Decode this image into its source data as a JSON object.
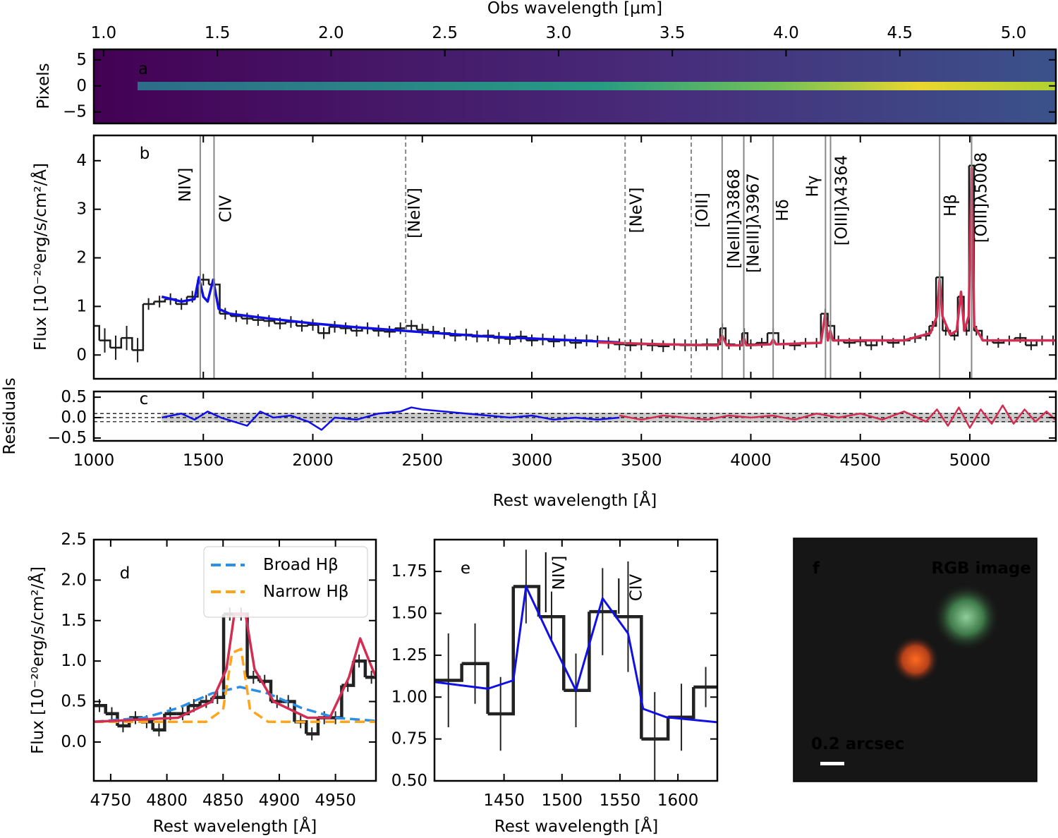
{
  "chart_data": [
    {
      "type": "heatmap",
      "letter": "a",
      "x2label": "Obs wavelength [μm]",
      "x2lim": [
        0.957,
        5.186
      ],
      "x2ticks": [
        {
          "value": 1,
          "label": "1.0"
        },
        1.5,
        {
          "value": 2,
          "label": "2.0"
        },
        2.5,
        {
          "value": 3,
          "label": "3.0"
        },
        3.5,
        {
          "value": 4,
          "label": "4.0"
        },
        4.5,
        {
          "value": 5,
          "label": "5.0"
        }
      ],
      "ylabel": "Pixels",
      "ylim": [
        -7.2,
        7
      ],
      "yticks": [
        5,
        0,
        {
          "value": -5,
          "label": "−5"
        }
      ]
    },
    {
      "type": "spectrum",
      "letter": "b",
      "ylabel": "Flux [10⁻²⁰erg/s/cm²/Å]",
      "xlim": [
        1000,
        5393
      ],
      "xticks": [
        1000,
        1500,
        2000,
        2500,
        3000,
        3500,
        4000,
        4500,
        5000
      ],
      "xtick_labels": false,
      "ylim": [
        -0.49,
        4.52
      ],
      "yticks": [
        0,
        1,
        2,
        3,
        4
      ],
      "series": [
        {
          "color": "#1a1a1a",
          "step": true,
          "x": [
            1000,
            1050,
            1100,
            1150,
            1200,
            1250,
            1300,
            1350,
            1400,
            1450,
            1500,
            1550,
            1600,
            1650,
            1700,
            1750,
            1800,
            1850,
            1900,
            1950,
            2000,
            2050,
            2100,
            2150,
            2200,
            2250,
            2300,
            2350,
            2400,
            2450,
            2500,
            2550,
            2600,
            2650,
            2700,
            2750,
            2800,
            2850,
            2900,
            2950,
            3000,
            3050,
            3100,
            3150,
            3200,
            3250,
            3300,
            3350,
            3400,
            3450,
            3500,
            3550,
            3600,
            3650,
            3700,
            3750,
            3800,
            3850,
            3870,
            3900,
            3950,
            3970,
            4000,
            4050,
            4102,
            4150,
            4200,
            4250,
            4300,
            4340,
            4363,
            4400,
            4450,
            4500,
            4550,
            4600,
            4650,
            4700,
            4750,
            4800,
            4830,
            4862,
            4890,
            4930,
            4960,
            4985,
            5008,
            5030,
            5080,
            5130,
            5180,
            5230,
            5280,
            5330,
            5380
          ],
          "values": [
            0.6,
            0.3,
            0.15,
            0.35,
            0.1,
            1.05,
            1.1,
            1.15,
            1.05,
            1.2,
            1.55,
            1.45,
            0.85,
            0.8,
            0.75,
            0.72,
            0.7,
            0.65,
            0.68,
            0.6,
            0.62,
            0.45,
            0.58,
            0.55,
            0.5,
            0.55,
            0.5,
            0.48,
            0.55,
            0.6,
            0.52,
            0.48,
            0.45,
            0.4,
            0.42,
            0.38,
            0.4,
            0.35,
            0.33,
            0.38,
            0.3,
            0.32,
            0.28,
            0.3,
            0.25,
            0.3,
            0.28,
            0.25,
            0.22,
            0.2,
            0.22,
            0.2,
            0.18,
            0.22,
            0.2,
            0.2,
            0.22,
            0.22,
            0.55,
            0.22,
            0.2,
            0.45,
            0.22,
            0.25,
            0.45,
            0.22,
            0.2,
            0.25,
            0.25,
            0.85,
            0.6,
            0.3,
            0.25,
            0.28,
            0.2,
            0.3,
            0.25,
            0.3,
            0.35,
            0.4,
            0.6,
            1.6,
            0.5,
            0.4,
            1.2,
            0.5,
            3.9,
            0.5,
            0.3,
            0.25,
            0.3,
            0.35,
            0.2,
            0.3,
            0.3
          ],
          "errors": [
            0.25,
            0.25,
            0.25,
            0.25,
            0.25,
            0.12,
            0.12,
            0.12,
            0.12,
            0.12,
            0.12,
            0.12,
            0.12,
            0.12,
            0.12,
            0.12,
            0.12,
            0.12,
            0.12,
            0.12,
            0.12,
            0.12,
            0.12,
            0.12,
            0.12,
            0.12,
            0.12,
            0.12,
            0.12,
            0.12,
            0.12,
            0.12,
            0.12,
            0.12,
            0.12,
            0.12,
            0.12,
            0.12,
            0.12,
            0.12,
            0.12,
            0.12,
            0.12,
            0.12,
            0.12,
            0.12,
            0.12,
            0.12,
            0.12,
            0.12,
            0.12,
            0.12,
            0.12,
            0.12,
            0.12,
            0.12,
            0.12,
            0.12,
            0.1,
            0.1,
            0.1,
            0.1,
            0.1,
            0.1,
            0.1,
            0.1,
            0.1,
            0.1,
            0.1,
            0.1,
            0.1,
            0.1,
            0.1,
            0.1,
            0.1,
            0.1,
            0.1,
            0.1,
            0.1,
            0.1,
            0.1,
            0.1,
            0.1,
            0.1,
            0.1,
            0.1,
            0.1,
            0.1,
            0.1,
            0.1,
            0.1,
            0.1,
            0.1,
            0.1,
            0.1
          ]
        },
        {
          "color": "#1010e6",
          "x": [
            1310,
            1400,
            1460,
            1480,
            1500,
            1520,
            1545,
            1570,
            1620,
            1800,
            2000,
            2200,
            2500,
            2800,
            3100,
            3400
          ],
          "values": [
            1.2,
            1.1,
            1.15,
            1.6,
            1.2,
            1.1,
            1.55,
            0.95,
            0.85,
            0.75,
            0.65,
            0.57,
            0.47,
            0.38,
            0.32,
            0.26
          ]
        },
        {
          "color": "#d22d52",
          "x": [
            3300,
            3600,
            3850,
            3869,
            3890,
            3960,
            3968,
            3980,
            4090,
            4102,
            4115,
            4320,
            4340,
            4352,
            4363,
            4375,
            4700,
            4820,
            4850,
            4862,
            4875,
            4910,
            4940,
            4960,
            4975,
            4995,
            5008,
            5020,
            5060,
            5393
          ],
          "values": [
            0.26,
            0.22,
            0.2,
            0.4,
            0.2,
            0.2,
            0.35,
            0.2,
            0.22,
            0.32,
            0.22,
            0.25,
            0.85,
            0.3,
            0.5,
            0.3,
            0.3,
            0.45,
            0.8,
            1.55,
            0.8,
            0.42,
            0.5,
            1.3,
            0.5,
            0.8,
            3.85,
            0.6,
            0.3,
            0.3
          ]
        }
      ],
      "lines": [
        {
          "x": 1486,
          "label": "NIV]",
          "style": "solid"
        },
        {
          "x": 1549,
          "label": "CIV",
          "style": "solid"
        },
        {
          "x": 2424,
          "label": "[NeIV]",
          "style": "dashed"
        },
        {
          "x": 3426,
          "label": "[NeV]",
          "style": "dashed"
        },
        {
          "x": 3728,
          "label": "[OII]",
          "style": "dashed"
        },
        {
          "x": 3869,
          "label": "[NeIII]λ3868",
          "style": "solid"
        },
        {
          "x": 3968,
          "label": "[NeIII]λ3967",
          "style": "solid"
        },
        {
          "x": 4102,
          "label": "Hδ",
          "style": "solid"
        },
        {
          "x": 4341,
          "label": "Hγ",
          "style": "solid"
        },
        {
          "x": 4364,
          "label": "[OIII]λ4364",
          "style": "solid"
        },
        {
          "x": 4862,
          "label": "Hβ",
          "style": "solid"
        },
        {
          "x": 5008,
          "label": "[OIII]λ5008",
          "style": "solid"
        }
      ]
    },
    {
      "type": "residuals",
      "letter": "c",
      "ylabel": "Residuals",
      "xlabel": "Rest wavelength [Å]",
      "xlim": [
        1000,
        5393
      ],
      "xticks": [
        1000,
        1500,
        2000,
        2500,
        3000,
        3500,
        4000,
        4500,
        5000
      ],
      "ylim": [
        -0.57,
        0.64
      ],
      "yticks": [
        0.5,
        {
          "value": 0,
          "label": "0.0"
        },
        {
          "value": -0.5,
          "label": "−0.5"
        }
      ],
      "band": [
        -0.12,
        0.12
      ],
      "band_color": "#cccccc",
      "hlines": [
        -0.1,
        0,
        0.1
      ],
      "series": [
        {
          "color": "#1010e6",
          "x": [
            1310,
            1400,
            1460,
            1520,
            1580,
            1640,
            1700,
            1760,
            1820,
            1900,
            1980,
            2040,
            2100,
            2200,
            2300,
            2400,
            2450,
            2500,
            2600,
            2700,
            2800,
            2900,
            3000,
            3100,
            3200,
            3300,
            3400
          ],
          "values": [
            0,
            0.1,
            -0.05,
            0.15,
            0,
            -0.1,
            -0.2,
            0.15,
            0,
            0.05,
            -0.1,
            -0.3,
            0,
            -0.05,
            0.1,
            0.15,
            0.25,
            0.2,
            0.15,
            0.1,
            0.05,
            0,
            0.05,
            -0.05,
            0,
            -0.05,
            0
          ]
        },
        {
          "color": "#d22d52",
          "x": [
            3400,
            3500,
            3600,
            3700,
            3800,
            3900,
            4000,
            4100,
            4200,
            4300,
            4400,
            4500,
            4600,
            4700,
            4800,
            4850,
            4900,
            4950,
            5000,
            5050,
            5100,
            5150,
            5200,
            5250,
            5300,
            5350,
            5390
          ],
          "values": [
            0.05,
            -0.05,
            0.05,
            0,
            -0.05,
            0.05,
            0,
            0.05,
            -0.05,
            0.1,
            0,
            0.1,
            -0.05,
            0.15,
            -0.1,
            0.2,
            -0.2,
            0.25,
            -0.25,
            0.2,
            -0.15,
            0.3,
            -0.15,
            0.2,
            -0.1,
            0.15,
            -0.05
          ]
        }
      ]
    },
    {
      "type": "spectrum",
      "letter": "d",
      "ylabel": "Flux [10⁻²⁰erg/s/cm²/Å]",
      "xlabel": "Rest wavelength [Å]",
      "xlim": [
        4735,
        4986
      ],
      "xticks": [
        4750,
        4800,
        4850,
        4900,
        4950
      ],
      "ylim": [
        -0.48,
        2.5
      ],
      "yticks": [
        {
          "value": 0,
          "label": "0.0"
        },
        0.5,
        {
          "value": 1,
          "label": "1.0"
        },
        1.5,
        {
          "value": 2,
          "label": "2.0"
        },
        2.5
      ],
      "legend": "upper right",
      "series": [
        {
          "color": "#222222",
          "step": true,
          "x": [
            4740,
            4751,
            4761,
            4772,
            4782,
            4793,
            4803,
            4814,
            4824,
            4835,
            4845,
            4856,
            4866,
            4877,
            4887,
            4898,
            4908,
            4919,
            4929,
            4940,
            4950,
            4961,
            4971,
            4982
          ],
          "values": [
            0.45,
            0.35,
            0.2,
            0.3,
            0.25,
            0.15,
            0.35,
            0.35,
            0.45,
            0.5,
            0.55,
            1.58,
            1.58,
            0.8,
            0.75,
            0.5,
            0.5,
            0.25,
            0.1,
            0.3,
            0.3,
            0.7,
            1.0,
            0.8
          ],
          "errors": [
            0.08,
            0.08,
            0.08,
            0.08,
            0.08,
            0.08,
            0.08,
            0.08,
            0.08,
            0.08,
            0.08,
            0.08,
            0.08,
            0.08,
            0.08,
            0.08,
            0.08,
            0.08,
            0.08,
            0.08,
            0.08,
            0.08,
            0.08,
            0.08
          ]
        },
        {
          "name": "Broad Hβ",
          "color": "#2b8fe8",
          "dash": true,
          "x": [
            4735,
            4780,
            4810,
            4840,
            4865,
            4890,
            4920,
            4950,
            4986
          ],
          "values": [
            0.25,
            0.3,
            0.42,
            0.6,
            0.68,
            0.6,
            0.42,
            0.3,
            0.26
          ]
        },
        {
          "name": "Narrow Hβ",
          "color": "#ffa41b",
          "dash": true,
          "x": [
            4735,
            4835,
            4850,
            4858,
            4866,
            4874,
            4890,
            4986
          ],
          "values": [
            0.25,
            0.25,
            0.4,
            1.1,
            1.15,
            0.4,
            0.25,
            0.25
          ]
        },
        {
          "color": "#d22d52",
          "x": [
            4735,
            4810,
            4840,
            4853,
            4860,
            4870,
            4878,
            4895,
            4925,
            4945,
            4962,
            4972,
            4980,
            4986
          ],
          "values": [
            0.25,
            0.3,
            0.5,
            0.9,
            1.58,
            1.58,
            0.9,
            0.5,
            0.3,
            0.3,
            0.8,
            1.28,
            1.0,
            0.8
          ]
        }
      ]
    },
    {
      "type": "spectrum",
      "letter": "e",
      "xlabel": "Rest wavelength [Å]",
      "xlim": [
        1390,
        1634
      ],
      "xticks": [
        1450,
        1500,
        1550,
        1600
      ],
      "ylim": [
        0.5,
        1.94
      ],
      "yticks": [
        {
          "value": 0.5,
          "label": "0.50"
        },
        0.75,
        {
          "value": 1,
          "label": "1.00"
        },
        1.25,
        {
          "value": 1.5,
          "label": "1.50"
        },
        1.75
      ],
      "series": [
        {
          "color": "#222222",
          "step": true,
          "x": [
            1402,
            1425,
            1447,
            1469,
            1491,
            1512,
            1535,
            1557,
            1580,
            1603,
            1624
          ],
          "values": [
            1.1,
            1.2,
            0.9,
            1.66,
            1.48,
            1.04,
            1.51,
            1.48,
            0.75,
            0.88,
            1.06
          ],
          "errors": [
            0.28,
            0.24,
            0.22,
            0.22,
            0.15,
            0.22,
            0.26,
            0.33,
            0.28,
            0.2,
            0.12
          ]
        },
        {
          "color": "#1010e6",
          "x": [
            1390,
            1436,
            1458,
            1469,
            1490,
            1512,
            1535,
            1557,
            1570,
            1590,
            1634
          ],
          "values": [
            1.09,
            1.05,
            1.1,
            1.66,
            1.35,
            1.04,
            1.59,
            1.38,
            0.93,
            0.88,
            0.85
          ]
        }
      ],
      "lines": [
        {
          "x": 1486,
          "label": "NIV]",
          "style": "solid"
        },
        {
          "x": 1549,
          "label": "CIV",
          "style": "solid"
        }
      ]
    },
    {
      "type": "image",
      "letter": "f",
      "title": "RGB image",
      "scale_label": "0.2 arcsec"
    }
  ]
}
